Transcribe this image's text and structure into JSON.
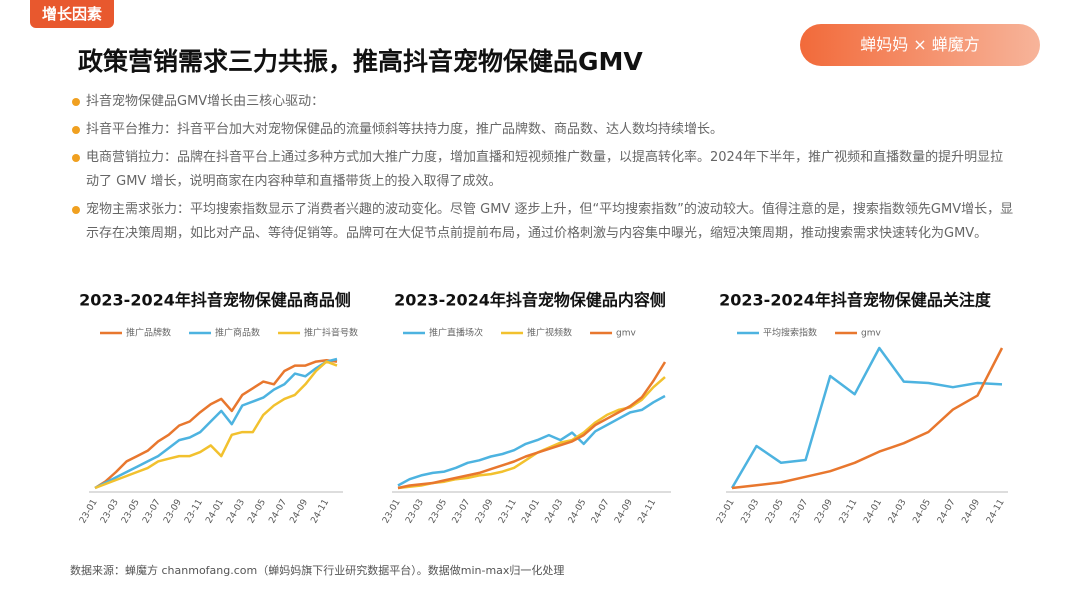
{
  "tag": "增长因素",
  "title": "政策营销需求三力共振，推高抖音宠物保健品GMV",
  "brand": {
    "left": "蝉妈妈",
    "sep": "×",
    "right": "蝉魔方"
  },
  "intro": "抖音宠物保健品GMV增长由三核心驱动：",
  "bullets": [
    "抖音平台推力：抖音平台加大对宠物保健品的流量倾斜等扶持力度，推广品牌数、商品数、达人数均持续增长。",
    "电商营销拉力：品牌在抖音平台上通过多种方式加大推广力度，增加直播和短视频推广数量，以提高转化率。2024年下半年，推广视频和直播数量的提升明显拉动了 GMV 增长，说明商家在内容种草和直播带货上的投入取得了成效。",
    "宠物主需求张力：平均搜索指数显示了消费者兴趣的波动变化。尽管 GMV 逐步上升，但“平均搜索指数”的波动较大。值得注意的是，搜索指数领先GMV增长，显示存在决策周期，如比对产品、等待促销等。品牌可在大促节点前提前布局，通过价格刺激与内容集中曝光，缩短决策周期，推动搜索需求快速转化为GMV。"
  ],
  "source": "数据来源：蝉魔方 chanmofang.com（蝉妈妈旗下行业研究数据平台）。数据做min-max归一化处理",
  "chart_data": [
    {
      "type": "line",
      "title": "2023-2024年抖音宠物保健品商品侧",
      "categories": [
        "23-01",
        null,
        "23-03",
        null,
        "23-05",
        null,
        "23-07",
        null,
        "23-09",
        null,
        "23-11",
        null,
        "24-01",
        null,
        "24-03",
        null,
        "24-05",
        null,
        "24-07",
        null,
        "24-09",
        null,
        "24-11",
        null
      ],
      "ylim": [
        0,
        1
      ],
      "series": [
        {
          "name": "推广品牌数",
          "color": "#e8772e",
          "values": [
            0,
            0.05,
            0.12,
            0.2,
            0.24,
            0.28,
            0.35,
            0.4,
            0.47,
            0.5,
            0.57,
            0.63,
            0.67,
            0.58,
            0.7,
            0.75,
            0.8,
            0.78,
            0.88,
            0.92,
            0.92,
            0.95,
            0.96,
            0.95
          ]
        },
        {
          "name": "推广商品数",
          "color": "#4db3e0",
          "values": [
            0,
            0.04,
            0.08,
            0.12,
            0.16,
            0.2,
            0.24,
            0.3,
            0.36,
            0.38,
            0.42,
            0.5,
            0.58,
            0.48,
            0.62,
            0.65,
            0.68,
            0.74,
            0.78,
            0.86,
            0.84,
            0.9,
            0.95,
            0.97
          ]
        },
        {
          "name": "推广抖音号数",
          "color": "#f2c12e",
          "values": [
            0,
            0.03,
            0.06,
            0.09,
            0.12,
            0.15,
            0.2,
            0.22,
            0.24,
            0.24,
            0.27,
            0.32,
            0.24,
            0.4,
            0.42,
            0.42,
            0.55,
            0.62,
            0.67,
            0.7,
            0.78,
            0.88,
            0.95,
            0.92
          ]
        }
      ]
    },
    {
      "type": "line",
      "title": "2023-2024年抖音宠物保健品内容侧",
      "categories": [
        "23-01",
        null,
        "23-03",
        null,
        "23-05",
        null,
        "23-07",
        null,
        "23-09",
        null,
        "23-11",
        null,
        "24-01",
        null,
        "24-03",
        null,
        "24-05",
        null,
        "24-07",
        null,
        "24-09",
        null,
        "24-11",
        null
      ],
      "ylim": [
        0,
        1
      ],
      "series": [
        {
          "name": "推广直播场次",
          "color": "#4db3e0",
          "values": [
            0.02,
            0.07,
            0.1,
            0.12,
            0.13,
            0.16,
            0.2,
            0.22,
            0.25,
            0.27,
            0.3,
            0.35,
            0.38,
            0.42,
            0.38,
            0.44,
            0.35,
            0.45,
            0.5,
            0.55,
            0.6,
            0.62,
            0.68,
            0.73
          ]
        },
        {
          "name": "推广视频数",
          "color": "#f2c12e",
          "values": [
            0,
            0.01,
            0.02,
            0.04,
            0.05,
            0.07,
            0.08,
            0.1,
            0.11,
            0.13,
            0.16,
            0.22,
            0.28,
            0.32,
            0.36,
            0.38,
            0.44,
            0.52,
            0.58,
            0.62,
            0.64,
            0.7,
            0.8,
            0.88
          ]
        },
        {
          "name": "gmv",
          "color": "#e8772e",
          "values": [
            0,
            0.02,
            0.03,
            0.04,
            0.06,
            0.08,
            0.1,
            0.12,
            0.15,
            0.18,
            0.21,
            0.25,
            0.28,
            0.31,
            0.34,
            0.37,
            0.42,
            0.5,
            0.55,
            0.6,
            0.65,
            0.72,
            0.85,
            1.0
          ]
        }
      ]
    },
    {
      "type": "line",
      "title": "2023-2024年抖音宠物保健品关注度",
      "categories": [
        "23-01",
        "23-03",
        "23-05",
        "23-07",
        "23-09",
        "23-11",
        "24-01",
        "24-03",
        "24-05",
        "24-07",
        "24-09",
        "24-11"
      ],
      "ylim": [
        0,
        1
      ],
      "series": [
        {
          "name": "平均搜索指数",
          "color": "#4db3e0",
          "values": [
            0,
            0.3,
            0.18,
            0.2,
            0.8,
            0.67,
            1.0,
            0.76,
            0.75,
            0.72,
            0.75,
            0.74
          ]
        },
        {
          "name": "gmv",
          "color": "#e8772e",
          "values": [
            0,
            0.02,
            0.04,
            0.08,
            0.12,
            0.18,
            0.26,
            0.32,
            0.4,
            0.56,
            0.66,
            1.0
          ]
        }
      ]
    }
  ]
}
